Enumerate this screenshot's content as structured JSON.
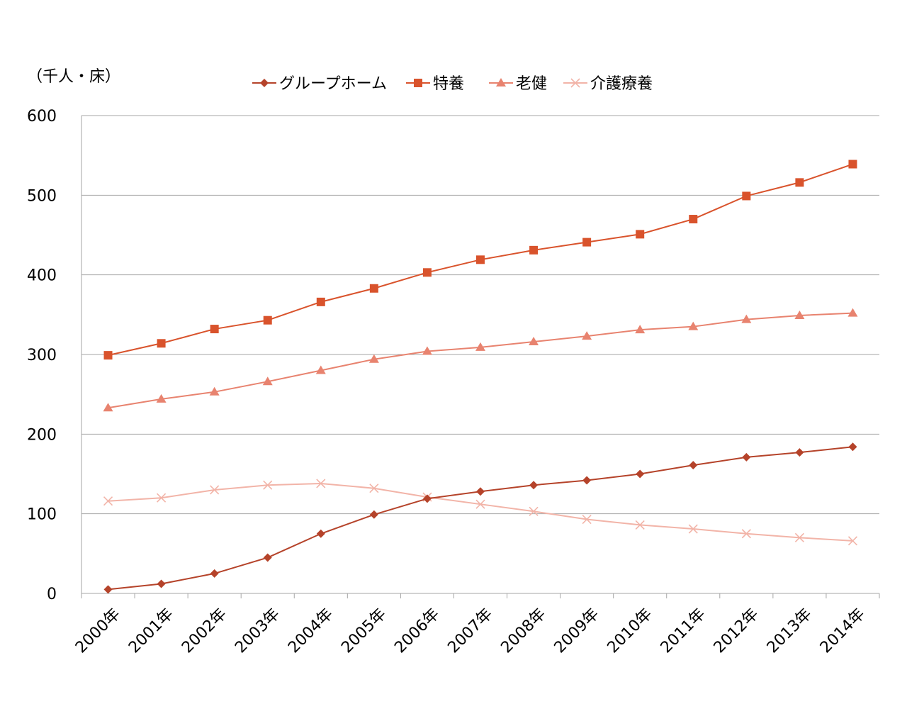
{
  "chart_data": {
    "type": "line",
    "unit_label": "（千人・床）",
    "categories": [
      "2000年",
      "2001年",
      "2002年",
      "2003年",
      "2004年",
      "2005年",
      "2006年",
      "2007年",
      "2008年",
      "2009年",
      "2010年",
      "2011年",
      "2012年",
      "2013年",
      "2014年"
    ],
    "ylim": [
      0,
      600
    ],
    "yticks": [
      "0",
      "100",
      "200",
      "300",
      "400",
      "500",
      "600"
    ],
    "grid": true,
    "legend_position": "top",
    "series": [
      {
        "name": "グループホーム",
        "marker": "diamond",
        "color": "#b5432a",
        "values": [
          5,
          12,
          25,
          45,
          75,
          99,
          119,
          128,
          136,
          142,
          150,
          161,
          171,
          177,
          184
        ]
      },
      {
        "name": "特養",
        "marker": "square",
        "color": "#d9532c",
        "values": [
          299,
          314,
          332,
          343,
          366,
          383,
          403,
          419,
          431,
          441,
          451,
          470,
          499,
          516,
          539
        ]
      },
      {
        "name": "老健",
        "marker": "triangle",
        "color": "#e8836f",
        "values": [
          233,
          244,
          253,
          266,
          280,
          294,
          304,
          309,
          316,
          323,
          331,
          335,
          344,
          349,
          352
        ]
      },
      {
        "name": "介護療養",
        "marker": "x",
        "color": "#f2b4a8",
        "values": [
          116,
          120,
          130,
          136,
          138,
          132,
          121,
          112,
          103,
          93,
          86,
          81,
          75,
          70,
          66
        ]
      }
    ]
  }
}
